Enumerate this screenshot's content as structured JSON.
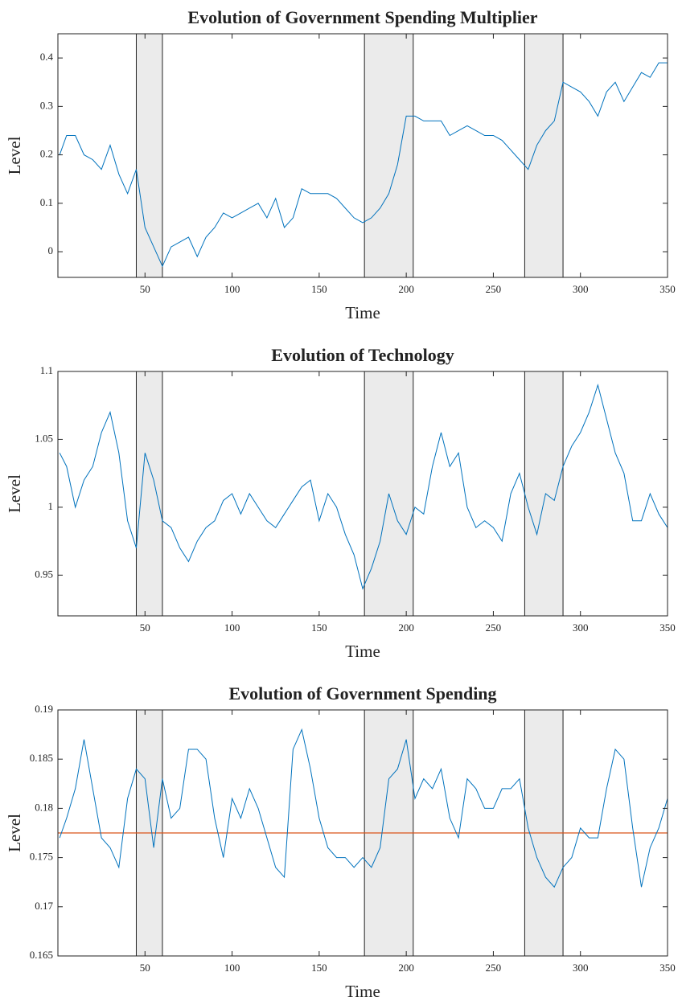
{
  "chart_data": [
    {
      "type": "line",
      "title": "Evolution of Government Spending Multiplier",
      "xlabel": "Time",
      "ylabel": "Level",
      "x": [
        1,
        5,
        10,
        15,
        20,
        25,
        30,
        35,
        40,
        45,
        50,
        55,
        60,
        65,
        70,
        75,
        80,
        85,
        90,
        95,
        100,
        105,
        110,
        115,
        120,
        125,
        130,
        135,
        140,
        145,
        150,
        155,
        160,
        165,
        170,
        175,
        180,
        185,
        190,
        195,
        200,
        205,
        210,
        215,
        220,
        225,
        230,
        235,
        240,
        245,
        250,
        255,
        260,
        265,
        270,
        275,
        280,
        285,
        290,
        295,
        300,
        305,
        310,
        315,
        320,
        325,
        330,
        335,
        340,
        345,
        350
      ],
      "series": [
        {
          "color": "#0072bd",
          "values": [
            0.2,
            0.24,
            0.24,
            0.2,
            0.19,
            0.17,
            0.22,
            0.16,
            0.12,
            0.17,
            0.05,
            0.01,
            -0.03,
            0.01,
            0.02,
            0.03,
            -0.01,
            0.03,
            0.05,
            0.08,
            0.07,
            0.08,
            0.09,
            0.1,
            0.07,
            0.11,
            0.05,
            0.07,
            0.13,
            0.12,
            0.12,
            0.12,
            0.11,
            0.09,
            0.07,
            0.06,
            0.07,
            0.09,
            0.12,
            0.18,
            0.28,
            0.28,
            0.27,
            0.27,
            0.27,
            0.24,
            0.25,
            0.26,
            0.25,
            0.24,
            0.24,
            0.23,
            0.21,
            0.19,
            0.17,
            0.22,
            0.25,
            0.27,
            0.35,
            0.34,
            0.33,
            0.31,
            0.28,
            0.33,
            0.35,
            0.31,
            0.34,
            0.37,
            0.36,
            0.39,
            0.39
          ]
        }
      ],
      "shaded_regions": [
        [
          45,
          60
        ],
        [
          176,
          204
        ],
        [
          268,
          290
        ]
      ],
      "xlim": [
        0,
        350
      ],
      "xticks": [
        50,
        100,
        150,
        200,
        250,
        300,
        350
      ],
      "ylim": [
        -0.053,
        0.45
      ],
      "yticks": [
        0,
        0.1,
        0.2,
        0.3,
        0.4
      ]
    },
    {
      "type": "line",
      "title": "Evolution of Technology",
      "xlabel": "Time",
      "ylabel": "Level",
      "x": [
        1,
        5,
        10,
        15,
        20,
        25,
        30,
        35,
        40,
        45,
        50,
        55,
        60,
        65,
        70,
        75,
        80,
        85,
        90,
        95,
        100,
        105,
        110,
        115,
        120,
        125,
        130,
        135,
        140,
        145,
        150,
        155,
        160,
        165,
        170,
        175,
        180,
        185,
        190,
        195,
        200,
        205,
        210,
        215,
        220,
        225,
        230,
        235,
        240,
        245,
        250,
        255,
        260,
        265,
        270,
        275,
        280,
        285,
        290,
        295,
        300,
        305,
        310,
        315,
        320,
        325,
        330,
        335,
        340,
        345,
        350
      ],
      "series": [
        {
          "color": "#0072bd",
          "values": [
            1.04,
            1.03,
            1.0,
            1.02,
            1.03,
            1.055,
            1.07,
            1.04,
            0.99,
            0.97,
            1.04,
            1.02,
            0.99,
            0.985,
            0.97,
            0.96,
            0.975,
            0.985,
            0.99,
            1.005,
            1.01,
            0.995,
            1.01,
            1.0,
            0.99,
            0.985,
            0.995,
            1.005,
            1.015,
            1.02,
            0.99,
            1.01,
            1.0,
            0.98,
            0.965,
            0.94,
            0.955,
            0.975,
            1.01,
            0.99,
            0.98,
            1.0,
            0.995,
            1.03,
            1.055,
            1.03,
            1.04,
            1.0,
            0.985,
            0.99,
            0.985,
            0.975,
            1.01,
            1.025,
            1.0,
            0.98,
            1.01,
            1.005,
            1.03,
            1.045,
            1.055,
            1.07,
            1.09,
            1.065,
            1.04,
            1.025,
            0.99,
            0.99,
            1.01,
            0.995,
            0.985
          ]
        }
      ],
      "shaded_regions": [
        [
          45,
          60
        ],
        [
          176,
          204
        ],
        [
          268,
          290
        ]
      ],
      "xlim": [
        0,
        350
      ],
      "xticks": [
        50,
        100,
        150,
        200,
        250,
        300,
        350
      ],
      "ylim": [
        0.92,
        1.1
      ],
      "yticks": [
        0.95,
        1,
        1.05,
        1.1
      ]
    },
    {
      "type": "line",
      "title": "Evolution of Government Spending",
      "xlabel": "Time",
      "ylabel": "Level",
      "x": [
        1,
        5,
        10,
        15,
        20,
        25,
        30,
        35,
        40,
        45,
        50,
        55,
        60,
        65,
        70,
        75,
        80,
        85,
        90,
        95,
        100,
        105,
        110,
        115,
        120,
        125,
        130,
        135,
        140,
        145,
        150,
        155,
        160,
        165,
        170,
        175,
        180,
        185,
        190,
        195,
        200,
        205,
        210,
        215,
        220,
        225,
        230,
        235,
        240,
        245,
        250,
        255,
        260,
        265,
        270,
        275,
        280,
        285,
        290,
        295,
        300,
        305,
        310,
        315,
        320,
        325,
        330,
        335,
        340,
        345,
        350
      ],
      "series": [
        {
          "color": "#0072bd",
          "values": [
            0.177,
            0.179,
            0.182,
            0.187,
            0.182,
            0.177,
            0.176,
            0.174,
            0.181,
            0.184,
            0.183,
            0.176,
            0.183,
            0.179,
            0.18,
            0.186,
            0.186,
            0.185,
            0.179,
            0.175,
            0.181,
            0.179,
            0.182,
            0.18,
            0.177,
            0.174,
            0.173,
            0.186,
            0.188,
            0.184,
            0.179,
            0.176,
            0.175,
            0.175,
            0.174,
            0.175,
            0.174,
            0.176,
            0.183,
            0.184,
            0.187,
            0.181,
            0.183,
            0.182,
            0.184,
            0.179,
            0.177,
            0.183,
            0.182,
            0.18,
            0.18,
            0.182,
            0.182,
            0.183,
            0.178,
            0.175,
            0.173,
            0.172,
            0.174,
            0.175,
            0.178,
            0.177,
            0.177,
            0.182,
            0.186,
            0.185,
            0.178,
            0.172,
            0.176,
            0.178,
            0.181
          ]
        }
      ],
      "hline": 0.1775,
      "hline_color": "#d95319",
      "shaded_regions": [
        [
          45,
          60
        ],
        [
          176,
          204
        ],
        [
          268,
          290
        ]
      ],
      "xlim": [
        0,
        350
      ],
      "xticks": [
        50,
        100,
        150,
        200,
        250,
        300,
        350
      ],
      "ylim": [
        0.165,
        0.19
      ],
      "yticks": [
        0.165,
        0.17,
        0.175,
        0.18,
        0.185,
        0.19
      ]
    }
  ]
}
